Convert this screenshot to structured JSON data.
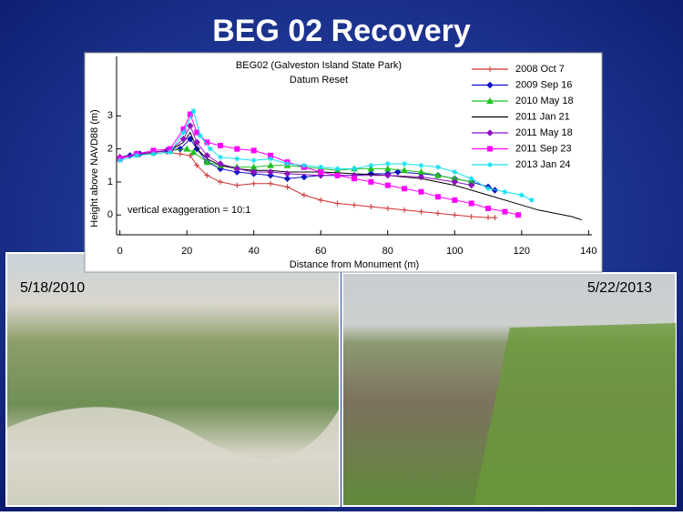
{
  "slide_title": "BEG 02 Recovery",
  "photos": [
    {
      "caption": "5/18/2010"
    },
    {
      "caption": "5/22/2013"
    }
  ],
  "chart_data": {
    "type": "line",
    "title": "BEG02 (Galveston Island State Park)",
    "subtitle": "Datum Reset",
    "x_label": "Distance from Monument (m)",
    "y_label": "Height above NAVD88 (m)",
    "annotation": "vertical exaggeration = 10:1",
    "xlim": [
      -1,
      141
    ],
    "xticks": [
      0,
      20,
      40,
      60,
      80,
      100,
      120,
      140
    ],
    "ylim": [
      -0.6,
      4.8
    ],
    "yticks": [
      0,
      1,
      2,
      3
    ],
    "series": [
      {
        "name": "2008 Oct 7",
        "color": "#d03030",
        "marker": "plus",
        "x": [
          0,
          3,
          6,
          10,
          14,
          18,
          21,
          23,
          26,
          30,
          35,
          40,
          45,
          50,
          55,
          60,
          65,
          70,
          75,
          80,
          85,
          90,
          95,
          100,
          105,
          110,
          112
        ],
        "values": [
          1.7,
          1.8,
          1.85,
          1.85,
          1.9,
          1.85,
          1.8,
          1.5,
          1.2,
          1.0,
          0.9,
          0.95,
          0.95,
          0.85,
          0.6,
          0.45,
          0.35,
          0.3,
          0.25,
          0.2,
          0.15,
          0.1,
          0.05,
          0,
          -0.05,
          -0.08,
          -0.08
        ]
      },
      {
        "name": "2009 Sep 16",
        "color": "#1010c8",
        "marker": "diamond",
        "x": [
          0,
          3,
          6,
          10,
          14,
          18,
          21,
          23,
          26,
          30,
          35,
          40,
          45,
          50,
          55,
          60,
          65,
          70,
          75,
          80,
          83,
          90,
          95,
          100,
          105,
          110,
          112
        ],
        "values": [
          1.7,
          1.8,
          1.85,
          1.9,
          1.95,
          2.0,
          2.3,
          2.0,
          1.6,
          1.4,
          1.3,
          1.25,
          1.2,
          1.1,
          1.15,
          1.2,
          1.2,
          1.2,
          1.25,
          1.25,
          1.3,
          1.25,
          1.2,
          1.1,
          1.0,
          0.85,
          0.75
        ]
      },
      {
        "name": "2010 May 18",
        "color": "#20c020",
        "marker": "triangle",
        "x": [
          0,
          5,
          10,
          15,
          20,
          22,
          26,
          30,
          35,
          40,
          45,
          50,
          55,
          60,
          65,
          70,
          75,
          80,
          85,
          90,
          95,
          100,
          105
        ],
        "values": [
          1.75,
          1.85,
          1.9,
          1.95,
          2.0,
          1.9,
          1.6,
          1.5,
          1.45,
          1.45,
          1.5,
          1.5,
          1.45,
          1.4,
          1.35,
          1.4,
          1.4,
          1.4,
          1.35,
          1.3,
          1.2,
          1.1,
          1.0
        ]
      },
      {
        "name": "2011 Jan 21",
        "color": "#000000",
        "marker": "none",
        "x": [
          0,
          5,
          10,
          15,
          19,
          21,
          23,
          26,
          30,
          35,
          40,
          45,
          50,
          60,
          70,
          80,
          90,
          100,
          110,
          120,
          125,
          130,
          135,
          138
        ],
        "values": [
          1.75,
          1.85,
          1.9,
          1.95,
          2.2,
          2.5,
          2.0,
          1.7,
          1.5,
          1.4,
          1.35,
          1.35,
          1.3,
          1.3,
          1.25,
          1.2,
          1.1,
          0.9,
          0.6,
          0.3,
          0.15,
          0.05,
          -0.05,
          -0.15
        ]
      },
      {
        "name": "2011 May 18",
        "color": "#9010c0",
        "marker": "diamond",
        "x": [
          0,
          5,
          10,
          15,
          19,
          21,
          23,
          26,
          30,
          35,
          40,
          45,
          50,
          60,
          70,
          80,
          90,
          100,
          105
        ],
        "values": [
          1.75,
          1.85,
          1.9,
          1.95,
          2.3,
          2.7,
          2.2,
          1.8,
          1.55,
          1.4,
          1.3,
          1.3,
          1.25,
          1.2,
          1.2,
          1.2,
          1.15,
          1.0,
          0.9
        ]
      },
      {
        "name": "2011 Sep 23",
        "color": "#ff00ff",
        "marker": "square",
        "x": [
          0,
          5,
          10,
          15,
          19,
          21,
          23,
          26,
          30,
          35,
          40,
          45,
          50,
          55,
          60,
          65,
          70,
          75,
          80,
          85,
          90,
          95,
          100,
          105,
          110,
          115,
          119
        ],
        "values": [
          1.7,
          1.85,
          1.95,
          2.0,
          2.6,
          3.05,
          2.5,
          2.2,
          2.1,
          2.0,
          1.95,
          1.8,
          1.6,
          1.45,
          1.3,
          1.2,
          1.1,
          1.0,
          0.9,
          0.8,
          0.7,
          0.55,
          0.45,
          0.35,
          0.2,
          0.1,
          0.0
        ]
      },
      {
        "name": "2013 Jan 24",
        "color": "#10e0f0",
        "marker": "star",
        "x": [
          0,
          5,
          10,
          15,
          19,
          22,
          24,
          27,
          30,
          35,
          40,
          45,
          50,
          55,
          60,
          65,
          70,
          75,
          80,
          85,
          90,
          95,
          100,
          105,
          110,
          115,
          120,
          123
        ],
        "values": [
          1.65,
          1.8,
          1.85,
          1.9,
          2.5,
          3.15,
          2.4,
          2.0,
          1.75,
          1.7,
          1.65,
          1.7,
          1.55,
          1.5,
          1.45,
          1.4,
          1.4,
          1.5,
          1.55,
          1.55,
          1.5,
          1.45,
          1.3,
          1.1,
          0.8,
          0.7,
          0.6,
          0.45
        ]
      }
    ]
  }
}
